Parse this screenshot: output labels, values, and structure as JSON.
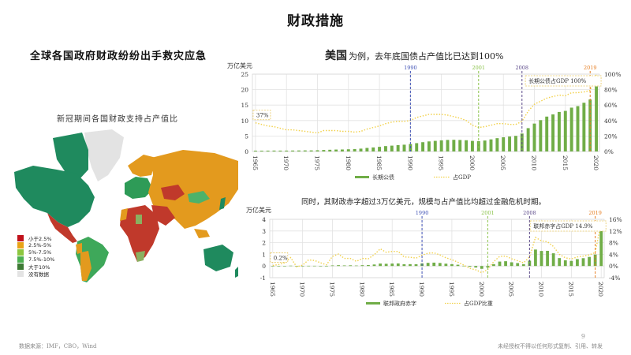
{
  "page": {
    "title": "财政措施",
    "left_heading": "全球各国政府财政纷纷出手救灾应急",
    "right_heading_strong": "美国",
    "right_heading_rest": "为例，去年底国债占产值比已达到100%",
    "sub_heading": "同时，其财政赤字超过3万亿美元，规模与占产值比均超过金融危机时期。",
    "footer_source": "数据来源：IMF，CBO，Wind",
    "footer_copyright": "未经授权不得以任何形式复制、引用、转发",
    "page_number": "9"
  },
  "map": {
    "title": "新冠期间各国财政支持占产值比",
    "legend": [
      {
        "label": "小于2.5%",
        "color": "#c0101a"
      },
      {
        "label": "2.5%-5%",
        "color": "#e8a317"
      },
      {
        "label": "5%-7.5%",
        "color": "#8cc63f"
      },
      {
        "label": "7.5%-10%",
        "color": "#4caf50"
      },
      {
        "label": "大于10%",
        "color": "#3d7a34"
      },
      {
        "label": "没有数据",
        "color": "#e3e3e3"
      }
    ],
    "colors": {
      "north_america": "#1f8a5e",
      "greenland": "#e3e3e3",
      "mexico": "#c0392b",
      "south_america_green": "#3ea85a",
      "south_america_orange": "#e39a1e",
      "europe_green": "#2e9b57",
      "russia_asia": "#e39a1e",
      "mongolia": "#4db26a",
      "africa": "#c0392b",
      "middle_east": "#c0392b",
      "australia": "#1f8a5e",
      "southern_africa": "#8ab060"
    }
  },
  "chart_data": [
    {
      "type": "bar+line",
      "title": "美国长期公债及占GDP比",
      "unit_left": "万亿美元",
      "ylim_left": [
        0,
        25
      ],
      "yticks_left": [
        "0",
        "5",
        "10",
        "15",
        "20",
        "25"
      ],
      "ylim_right": [
        0,
        100
      ],
      "yticks_right": [
        "0%",
        "20%",
        "40%",
        "60%",
        "80%",
        "100%"
      ],
      "xticks": [
        "1965",
        "1970",
        "1975",
        "1980",
        "1985",
        "1990",
        "1995",
        "2000",
        "2005",
        "2010",
        "2015",
        "2020"
      ],
      "x": [
        1965,
        1966,
        1967,
        1968,
        1969,
        1970,
        1971,
        1972,
        1973,
        1974,
        1975,
        1976,
        1977,
        1978,
        1979,
        1980,
        1981,
        1982,
        1983,
        1984,
        1985,
        1986,
        1987,
        1988,
        1989,
        1990,
        1991,
        1992,
        1993,
        1994,
        1995,
        1996,
        1997,
        1998,
        1999,
        2000,
        2001,
        2002,
        2003,
        2004,
        2005,
        2006,
        2007,
        2008,
        2009,
        2010,
        2011,
        2012,
        2013,
        2014,
        2015,
        2016,
        2017,
        2018,
        2019,
        2020
      ],
      "series": [
        {
          "name": "长期公债",
          "type": "bar",
          "color": "#70ad47",
          "values": [
            0.26,
            0.26,
            0.27,
            0.29,
            0.28,
            0.28,
            0.3,
            0.32,
            0.34,
            0.34,
            0.39,
            0.48,
            0.55,
            0.62,
            0.64,
            0.71,
            0.79,
            0.92,
            1.14,
            1.3,
            1.5,
            1.74,
            1.89,
            2.05,
            2.19,
            2.41,
            2.69,
            3.0,
            3.25,
            3.43,
            3.6,
            3.73,
            3.77,
            3.72,
            3.63,
            3.41,
            3.32,
            3.54,
            3.91,
            4.3,
            4.59,
            4.83,
            5.04,
            5.8,
            7.54,
            9.02,
            10.13,
            11.28,
            11.98,
            12.78,
            13.12,
            14.17,
            14.67,
            15.75,
            16.8,
            21.02
          ]
        },
        {
          "name": "占GDP",
          "type": "line",
          "style": "dotted",
          "color": "#f2d14b",
          "values": [
            37,
            35,
            33,
            32,
            30,
            28,
            28,
            27,
            26,
            25,
            24,
            27,
            27,
            27,
            26,
            26,
            25,
            26,
            29,
            31,
            33,
            36,
            38,
            39,
            39,
            40,
            44,
            46,
            48,
            48,
            48,
            47,
            45,
            43,
            40,
            34,
            31,
            32,
            34,
            36,
            36,
            35,
            35,
            39,
            52,
            61,
            65,
            69,
            71,
            73,
            72,
            76,
            76,
            77,
            79,
            100
          ]
        }
      ],
      "annotations": [
        {
          "text": "37%",
          "x": 1965
        },
        {
          "text": "长期公债占GDP 100%",
          "x": 2020
        }
      ],
      "reference_lines": [
        {
          "label": "1990",
          "x": 1990,
          "color": "#3f51b5"
        },
        {
          "label": "2001",
          "x": 2001,
          "color": "#8bc34a"
        },
        {
          "label": "2008",
          "x": 2008,
          "color": "#5c4a8a"
        },
        {
          "label": "2019",
          "x": 2019,
          "color": "#e67e22"
        }
      ],
      "legend": [
        "长期公债",
        "占GDP"
      ]
    },
    {
      "type": "bar+line",
      "title": "美国联邦政府赤字及占GDP比重",
      "unit_left": "万亿美元",
      "ylim_left": [
        -1,
        4
      ],
      "yticks_left": [
        "-1",
        "0",
        "1",
        "2",
        "3",
        "4"
      ],
      "ylim_right": [
        -4,
        16
      ],
      "yticks_right": [
        "-4%",
        "0%",
        "4%",
        "8%",
        "12%",
        "16%"
      ],
      "xticks": [
        "1965",
        "1970",
        "1975",
        "1980",
        "1985",
        "1990",
        "1995",
        "2000",
        "2005",
        "2010",
        "2015",
        "2020"
      ],
      "x": [
        1965,
        1966,
        1967,
        1968,
        1969,
        1970,
        1971,
        1972,
        1973,
        1974,
        1975,
        1976,
        1977,
        1978,
        1979,
        1980,
        1981,
        1982,
        1983,
        1984,
        1985,
        1986,
        1987,
        1988,
        1989,
        1990,
        1991,
        1992,
        1993,
        1994,
        1995,
        1996,
        1997,
        1998,
        1999,
        2000,
        2001,
        2002,
        2003,
        2004,
        2005,
        2006,
        2007,
        2008,
        2009,
        2010,
        2011,
        2012,
        2013,
        2014,
        2015,
        2016,
        2017,
        2018,
        2019,
        2020
      ],
      "series": [
        {
          "name": "联邦政府赤字",
          "type": "bar",
          "color": "#70ad47",
          "values": [
            0.0,
            0.0,
            0.01,
            0.03,
            0.0,
            0.0,
            0.02,
            0.02,
            0.01,
            0.01,
            0.05,
            0.07,
            0.05,
            0.06,
            0.04,
            0.07,
            0.08,
            0.13,
            0.21,
            0.19,
            0.21,
            0.22,
            0.15,
            0.16,
            0.15,
            0.22,
            0.27,
            0.29,
            0.26,
            0.2,
            0.16,
            0.11,
            0.02,
            -0.07,
            -0.13,
            -0.24,
            -0.13,
            0.16,
            0.38,
            0.41,
            0.32,
            0.25,
            0.16,
            0.46,
            1.41,
            1.29,
            1.3,
            1.09,
            0.68,
            0.49,
            0.44,
            0.59,
            0.67,
            0.78,
            0.98,
            3.13
          ]
        },
        {
          "name": "占GDP比重",
          "type": "line",
          "style": "dotted",
          "color": "#f2d14b",
          "values": [
            0.2,
            0.5,
            1.1,
            2.9,
            -0.3,
            0.3,
            2.1,
            1.9,
            1.1,
            0.4,
            3.3,
            4.1,
            2.6,
            2.6,
            1.6,
            2.6,
            2.5,
            3.9,
            5.9,
            4.7,
            5.0,
            5.0,
            3.1,
            3.0,
            2.7,
            3.7,
            4.4,
            4.5,
            3.8,
            2.8,
            2.2,
            1.3,
            0.3,
            -0.8,
            -1.3,
            -2.3,
            -1.2,
            1.5,
            3.3,
            3.4,
            2.5,
            1.8,
            1.1,
            3.1,
            9.8,
            8.6,
            8.3,
            6.7,
            4.0,
            2.8,
            2.4,
            3.1,
            3.4,
            3.8,
            4.6,
            14.9
          ]
        }
      ],
      "annotations": [
        {
          "text": "0.2%",
          "x": 1965
        },
        {
          "text": "联邦赤字占GDP 14.9%",
          "x": 2020
        }
      ],
      "reference_lines": [
        {
          "label": "1990",
          "x": 1990,
          "color": "#3f51b5"
        },
        {
          "label": "2001",
          "x": 2001,
          "color": "#8bc34a"
        },
        {
          "label": "2008",
          "x": 2008,
          "color": "#5c4a8a"
        },
        {
          "label": "2019",
          "x": 2019,
          "color": "#e67e22"
        }
      ],
      "legend": [
        "联邦政府赤字",
        "占GDP比重"
      ]
    }
  ]
}
